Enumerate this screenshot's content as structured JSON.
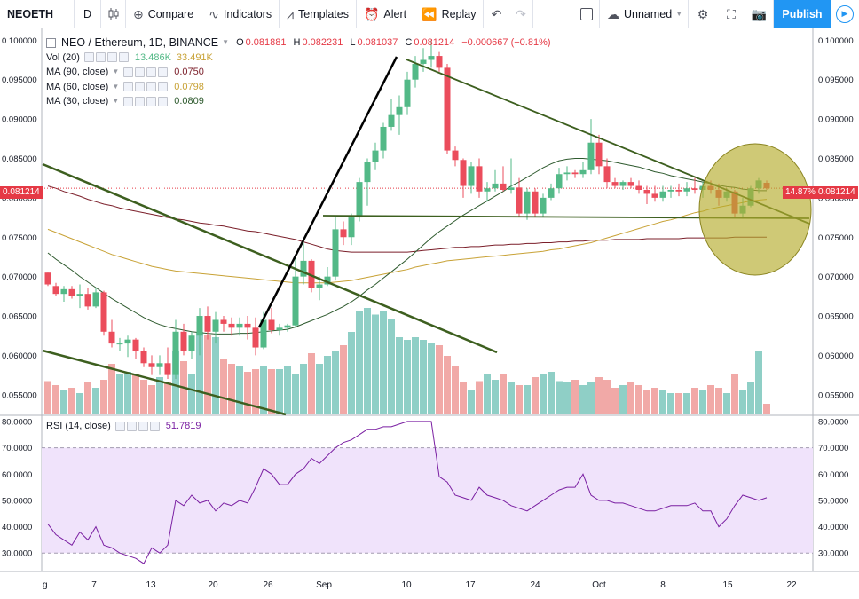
{
  "toolbar": {
    "symbol": "NEOETH",
    "interval": "D",
    "compare": "Compare",
    "indicators": "Indicators",
    "templates": "Templates",
    "alert": "Alert",
    "replay": "Replay",
    "layout_name": "Unnamed",
    "publish": "Publish"
  },
  "legend": {
    "title": "NEO / Ethereum, 1D, BINANCE",
    "o_label": "O",
    "o": "0.081881",
    "h_label": "H",
    "h": "0.082231",
    "l_label": "L",
    "l": "0.081037",
    "c_label": "C",
    "c": "0.081214",
    "change": "−0.000667 (−0.81%)",
    "vol_label": "Vol (20)",
    "vol_a": "13.486K",
    "vol_b": "33.491K",
    "ma90_label": "MA (90, close)",
    "ma90": "0.0750",
    "ma60_label": "MA (60, close)",
    "ma60": "0.0798",
    "ma30_label": "MA (30, close)",
    "ma30": "0.0809",
    "rsi_label": "RSI (14, close)",
    "rsi": "51.7819"
  },
  "colors": {
    "up": "#53b987",
    "down": "#eb4d5c",
    "vol_up": "#8fcfc6",
    "vol_down": "#f1a9a7",
    "ma90": "#7b1f2a",
    "ma60": "#c8a236",
    "ma30": "#2e5a2e",
    "rsi": "#7a1fa2",
    "rsi_band": "#f0e3fb",
    "trend": "#3d5f1f",
    "impulse": "#000000",
    "highlight": "#b5ac2d"
  },
  "price_axis": {
    "ticks": [
      "0.100000",
      "0.095000",
      "0.090000",
      "0.085000",
      "0.080000",
      "0.075000",
      "0.070000",
      "0.065000",
      "0.060000",
      "0.055000"
    ],
    "last_price": "0.081214",
    "last_pct": "14.87%"
  },
  "rsi_axis": {
    "ticks": [
      "80.0000",
      "70.0000",
      "60.0000",
      "50.0000",
      "40.0000",
      "30.0000"
    ]
  },
  "time_axis": {
    "labels": [
      "g",
      "7",
      "13",
      "20",
      "26",
      "Sep",
      "10",
      "17",
      "24",
      "Oct",
      "8",
      "15",
      "22"
    ]
  },
  "chart_data": {
    "type": "candlestick",
    "price_range": [
      0.0525,
      0.1015
    ],
    "rsi_range": [
      23,
      82
    ],
    "candles": [
      [
        0.0705,
        0.0705,
        0.0688,
        0.069
      ],
      [
        0.0688,
        0.0692,
        0.0675,
        0.0678
      ],
      [
        0.0678,
        0.0688,
        0.0668,
        0.0684
      ],
      [
        0.0684,
        0.0688,
        0.0672,
        0.0675
      ],
      [
        0.0675,
        0.069,
        0.066,
        0.0678
      ],
      [
        0.0678,
        0.0685,
        0.0658,
        0.0662
      ],
      [
        0.0662,
        0.0685,
        0.066,
        0.068
      ],
      [
        0.068,
        0.0682,
        0.0625,
        0.063
      ],
      [
        0.063,
        0.0645,
        0.061,
        0.0615
      ],
      [
        0.0615,
        0.0622,
        0.0605,
        0.0615
      ],
      [
        0.0615,
        0.0625,
        0.0598,
        0.062
      ],
      [
        0.062,
        0.0622,
        0.0595,
        0.0605
      ],
      [
        0.0605,
        0.061,
        0.0585,
        0.059
      ],
      [
        0.059,
        0.06,
        0.0575,
        0.0585
      ],
      [
        0.0585,
        0.06,
        0.0575,
        0.059
      ],
      [
        0.059,
        0.061,
        0.057,
        0.0575
      ],
      [
        0.0575,
        0.0645,
        0.057,
        0.063
      ],
      [
        0.063,
        0.064,
        0.06,
        0.0605
      ],
      [
        0.0605,
        0.063,
        0.0595,
        0.0625
      ],
      [
        0.0625,
        0.066,
        0.06,
        0.065
      ],
      [
        0.065,
        0.0662,
        0.062,
        0.063
      ],
      [
        0.063,
        0.0655,
        0.0615,
        0.0645
      ],
      [
        0.0645,
        0.065,
        0.063,
        0.064
      ],
      [
        0.064,
        0.0648,
        0.0625,
        0.0635
      ],
      [
        0.0635,
        0.0648,
        0.0625,
        0.064
      ],
      [
        0.064,
        0.065,
        0.062,
        0.0635
      ],
      [
        0.0635,
        0.0648,
        0.06,
        0.061
      ],
      [
        0.061,
        0.0655,
        0.0608,
        0.0645
      ],
      [
        0.0645,
        0.066,
        0.0628,
        0.0632
      ],
      [
        0.0632,
        0.064,
        0.0625,
        0.0635
      ],
      [
        0.0635,
        0.064,
        0.063,
        0.0638
      ],
      [
        0.0638,
        0.0725,
        0.0635,
        0.07
      ],
      [
        0.07,
        0.0745,
        0.069,
        0.072
      ],
      [
        0.072,
        0.0722,
        0.068,
        0.0685
      ],
      [
        0.0685,
        0.07,
        0.067,
        0.069
      ],
      [
        0.069,
        0.0712,
        0.0688,
        0.07
      ],
      [
        0.07,
        0.0775,
        0.0695,
        0.076
      ],
      [
        0.076,
        0.077,
        0.074,
        0.075
      ],
      [
        0.075,
        0.078,
        0.074,
        0.0775
      ],
      [
        0.0775,
        0.0825,
        0.077,
        0.082
      ],
      [
        0.082,
        0.085,
        0.079,
        0.0845
      ],
      [
        0.0845,
        0.087,
        0.0835,
        0.086
      ],
      [
        0.086,
        0.0895,
        0.085,
        0.089
      ],
      [
        0.089,
        0.0925,
        0.0885,
        0.0905
      ],
      [
        0.0905,
        0.093,
        0.088,
        0.0915
      ],
      [
        0.0915,
        0.096,
        0.0905,
        0.095
      ],
      [
        0.095,
        0.098,
        0.094,
        0.097
      ],
      [
        0.097,
        0.099,
        0.096,
        0.0975
      ],
      [
        0.0975,
        0.1,
        0.0965,
        0.098
      ],
      [
        0.098,
        0.0985,
        0.096,
        0.0965
      ],
      [
        0.0965,
        0.097,
        0.0855,
        0.086
      ],
      [
        0.086,
        0.0865,
        0.084,
        0.0848
      ],
      [
        0.0848,
        0.085,
        0.08,
        0.0815
      ],
      [
        0.0815,
        0.0845,
        0.0805,
        0.084
      ],
      [
        0.084,
        0.085,
        0.08,
        0.0808
      ],
      [
        0.0808,
        0.082,
        0.0795,
        0.0812
      ],
      [
        0.0812,
        0.0835,
        0.0808,
        0.0818
      ],
      [
        0.0818,
        0.084,
        0.0808,
        0.081
      ],
      [
        0.081,
        0.085,
        0.0805,
        0.0813
      ],
      [
        0.0813,
        0.0825,
        0.0775,
        0.078
      ],
      [
        0.078,
        0.0812,
        0.0772,
        0.0808
      ],
      [
        0.0808,
        0.0812,
        0.0775,
        0.078
      ],
      [
        0.078,
        0.0805,
        0.0775,
        0.08
      ],
      [
        0.08,
        0.0818,
        0.0797,
        0.0812
      ],
      [
        0.0812,
        0.0838,
        0.0805,
        0.083
      ],
      [
        0.083,
        0.084,
        0.0822,
        0.0832
      ],
      [
        0.0832,
        0.0835,
        0.0825,
        0.083
      ],
      [
        0.083,
        0.0845,
        0.0825,
        0.0835
      ],
      [
        0.0835,
        0.09,
        0.083,
        0.087
      ],
      [
        0.087,
        0.088,
        0.083,
        0.084
      ],
      [
        0.084,
        0.085,
        0.0812,
        0.082
      ],
      [
        0.082,
        0.0825,
        0.0812,
        0.0815
      ],
      [
        0.0815,
        0.0822,
        0.081,
        0.082
      ],
      [
        0.082,
        0.0825,
        0.0812,
        0.0815
      ],
      [
        0.0815,
        0.0822,
        0.0805,
        0.081
      ],
      [
        0.081,
        0.0815,
        0.0792,
        0.0805
      ],
      [
        0.0805,
        0.0815,
        0.0795,
        0.08
      ],
      [
        0.08,
        0.0815,
        0.0795,
        0.0808
      ],
      [
        0.0808,
        0.0815,
        0.08,
        0.081
      ],
      [
        0.081,
        0.0818,
        0.0802,
        0.0808
      ],
      [
        0.0808,
        0.082,
        0.0802,
        0.0812
      ],
      [
        0.0812,
        0.0825,
        0.0805,
        0.081
      ],
      [
        0.081,
        0.082,
        0.08,
        0.0815
      ],
      [
        0.0815,
        0.0822,
        0.0805,
        0.081
      ],
      [
        0.081,
        0.0818,
        0.079,
        0.08
      ],
      [
        0.08,
        0.0812,
        0.0795,
        0.0808
      ],
      [
        0.0808,
        0.081,
        0.0775,
        0.078
      ],
      [
        0.078,
        0.08,
        0.0775,
        0.079
      ],
      [
        0.079,
        0.0815,
        0.0788,
        0.0812
      ],
      [
        0.0812,
        0.0825,
        0.0805,
        0.0822
      ],
      [
        0.0819,
        0.0822,
        0.081,
        0.0812
      ]
    ],
    "volume": [
      25,
      22,
      18,
      20,
      16,
      24,
      20,
      26,
      38,
      30,
      32,
      30,
      26,
      22,
      28,
      24,
      48,
      40,
      30,
      62,
      60,
      58,
      42,
      38,
      36,
      32,
      34,
      36,
      34,
      34,
      36,
      30,
      38,
      46,
      38,
      44,
      48,
      52,
      62,
      78,
      80,
      75,
      78,
      72,
      58,
      56,
      58,
      56,
      54,
      52,
      44,
      36,
      24,
      18,
      25,
      30,
      26,
      30,
      24,
      22,
      22,
      28,
      30,
      32,
      25,
      24,
      26,
      22,
      24,
      28,
      26,
      20,
      22,
      24,
      22,
      18,
      20,
      18,
      16,
      16,
      16,
      20,
      18,
      22,
      20,
      16,
      30,
      18,
      24,
      48,
      8
    ],
    "ma90": [
      0.0815,
      0.0812,
      0.0808,
      0.0805,
      0.0802,
      0.0798,
      0.0795,
      0.0792,
      0.079,
      0.0787,
      0.0785,
      0.0783,
      0.0781,
      0.0779,
      0.0777,
      0.0775,
      0.0773,
      0.0772,
      0.077,
      0.0768,
      0.0767,
      0.0765,
      0.0764,
      0.0762,
      0.076,
      0.0758,
      0.0757,
      0.0755,
      0.0753,
      0.0751,
      0.0749,
      0.0747,
      0.0744,
      0.0741,
      0.0738,
      0.0735,
      0.0733,
      0.0732,
      0.0731,
      0.0731,
      0.0731,
      0.0731,
      0.0731,
      0.0731,
      0.0731,
      0.0731,
      0.0732,
      0.0733,
      0.0734,
      0.0735,
      0.0736,
      0.0737,
      0.0737,
      0.0738,
      0.0738,
      0.0739,
      0.074,
      0.074,
      0.0741,
      0.0741,
      0.0742,
      0.0742,
      0.0743,
      0.0743,
      0.0744,
      0.0744,
      0.0745,
      0.0745,
      0.0746,
      0.0746,
      0.0746,
      0.0747,
      0.0747,
      0.0747,
      0.0747,
      0.0748,
      0.0748,
      0.0748,
      0.0748,
      0.0748,
      0.0749,
      0.0749,
      0.0749,
      0.0749,
      0.0749,
      0.0749,
      0.075,
      0.075,
      0.075,
      0.075,
      0.075
    ],
    "ma60": [
      0.076,
      0.0756,
      0.0752,
      0.0748,
      0.0744,
      0.074,
      0.0736,
      0.0732,
      0.0728,
      0.0725,
      0.0722,
      0.0719,
      0.0716,
      0.0713,
      0.0711,
      0.0709,
      0.0707,
      0.0706,
      0.0705,
      0.0704,
      0.0703,
      0.0702,
      0.0701,
      0.07,
      0.0699,
      0.0698,
      0.0697,
      0.0696,
      0.0695,
      0.0694,
      0.0693,
      0.0692,
      0.0692,
      0.0692,
      0.0692,
      0.0692,
      0.0693,
      0.0694,
      0.0695,
      0.0697,
      0.0699,
      0.0701,
      0.0703,
      0.0705,
      0.0707,
      0.0709,
      0.0712,
      0.0714,
      0.0716,
      0.0718,
      0.072,
      0.0721,
      0.0722,
      0.0723,
      0.0724,
      0.0725,
      0.0726,
      0.0727,
      0.0728,
      0.0729,
      0.073,
      0.0731,
      0.0732,
      0.0734,
      0.0735,
      0.0737,
      0.0739,
      0.0741,
      0.0743,
      0.0746,
      0.0749,
      0.0752,
      0.0755,
      0.0758,
      0.0761,
      0.0764,
      0.0767,
      0.077,
      0.0772,
      0.0775,
      0.0778,
      0.0781,
      0.0783,
      0.0786,
      0.0788,
      0.079,
      0.0792,
      0.0794,
      0.0796,
      0.0797,
      0.0798
    ],
    "ma30": [
      0.073,
      0.0722,
      0.0715,
      0.0708,
      0.07,
      0.0693,
      0.0686,
      0.0679,
      0.0672,
      0.0666,
      0.066,
      0.0654,
      0.0648,
      0.0643,
      0.0639,
      0.0636,
      0.0634,
      0.0632,
      0.063,
      0.0629,
      0.0628,
      0.0627,
      0.0627,
      0.0627,
      0.0628,
      0.0628,
      0.0629,
      0.063,
      0.0631,
      0.0632,
      0.0633,
      0.0636,
      0.064,
      0.0644,
      0.0648,
      0.0652,
      0.0657,
      0.0662,
      0.0668,
      0.0675,
      0.0683,
      0.069,
      0.0698,
      0.0706,
      0.0714,
      0.0722,
      0.0731,
      0.074,
      0.0749,
      0.0757,
      0.0764,
      0.0771,
      0.0778,
      0.0784,
      0.079,
      0.0796,
      0.0802,
      0.0808,
      0.0815,
      0.082,
      0.0826,
      0.0832,
      0.0838,
      0.0843,
      0.0847,
      0.0849,
      0.085,
      0.085,
      0.0849,
      0.0848,
      0.0847,
      0.0845,
      0.0843,
      0.0841,
      0.0839,
      0.0836,
      0.0833,
      0.0831,
      0.0828,
      0.0826,
      0.0824,
      0.0822,
      0.082,
      0.0818,
      0.0816,
      0.0814,
      0.0813,
      0.0811,
      0.081,
      0.0809,
      0.0809
    ],
    "rsi": [
      41,
      37,
      35,
      33,
      38,
      35,
      40,
      33,
      32,
      30,
      29,
      28,
      26,
      32,
      30,
      33,
      50,
      48,
      52,
      49,
      50,
      46,
      49,
      48,
      50,
      49,
      55,
      62,
      60,
      56,
      56,
      60,
      62,
      66,
      64,
      67,
      70,
      72,
      73,
      75,
      77,
      77,
      78,
      78,
      79,
      80,
      80,
      80,
      80,
      59,
      57,
      52,
      51,
      50,
      55,
      52,
      51,
      50,
      48,
      47,
      46,
      48,
      50,
      52,
      54,
      55,
      55,
      60,
      52,
      50,
      50,
      49,
      49,
      48,
      47,
      46,
      46,
      47,
      48,
      48,
      48,
      49,
      46,
      46,
      40,
      43,
      48,
      52,
      51,
      50,
      51
    ]
  }
}
